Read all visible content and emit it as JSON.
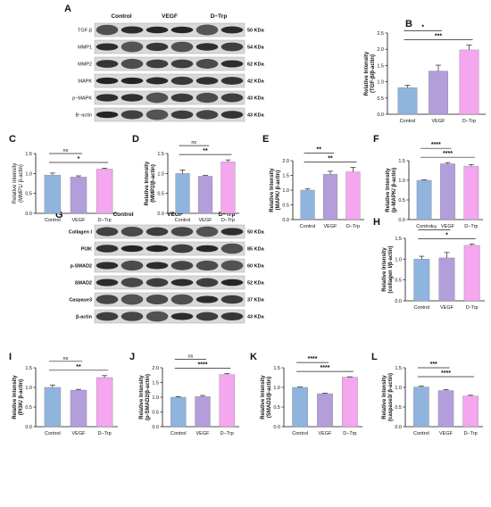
{
  "blot_a": {
    "label": "A",
    "lanes": [
      "Control",
      "VEGF",
      "D−Trp"
    ],
    "rows": [
      {
        "marker": "TGF-β",
        "size": "50 KDa"
      },
      {
        "marker": "MMP1",
        "size": "54 KDa"
      },
      {
        "marker": "MMP2",
        "size": "62 KDa"
      },
      {
        "marker": "MAPK",
        "size": "42 KDa"
      },
      {
        "marker": "p−MAPK",
        "size": "43 KDa"
      },
      {
        "marker": "B−actin",
        "size": "43 KDa"
      }
    ]
  },
  "blot_g": {
    "label": "G",
    "lanes": [
      "Control",
      "VEGF",
      "D−Trp"
    ],
    "rows": [
      {
        "marker": "Collagen I",
        "size": "50 KDa"
      },
      {
        "marker": "PI3K",
        "size": "85 KDa"
      },
      {
        "marker": "p-SMAD2",
        "size": "60 KDa"
      },
      {
        "marker": "SMAD2",
        "size": "52 KDa"
      },
      {
        "marker": "Caspase3",
        "size": "37 KDa"
      },
      {
        "marker": "β-actin",
        "size": "43 KDa"
      }
    ]
  },
  "colors": {
    "control": "#8fb4de",
    "vegf": "#b39ddb",
    "dtrp": "#f4a6ee",
    "axis": "#111111"
  },
  "chart_data": [
    {
      "panel": "B",
      "type": "bar",
      "categories": [
        "Control",
        "VEGF",
        "D−Trp"
      ],
      "values": [
        0.82,
        1.33,
        1.98
      ],
      "errors": [
        0.07,
        0.18,
        0.15
      ],
      "ylabel": [
        "Relative Intensity",
        "(TGF-β/β-actin)"
      ],
      "ylabel_bold": true,
      "ylim": [
        0,
        2.5
      ],
      "yticks": [
        "0.0",
        "0.5",
        "1.0",
        "1.5",
        "2.0",
        "2.5"
      ],
      "significance": [
        {
          "from": 0,
          "to": 1,
          "label": "*"
        },
        {
          "from": 0,
          "to": 2,
          "label": "***"
        }
      ]
    },
    {
      "panel": "C",
      "type": "bar",
      "categories": [
        "Control",
        "VEGF",
        "D−Trp"
      ],
      "values": [
        0.96,
        0.91,
        1.11
      ],
      "errors": [
        0.05,
        0.03,
        0.02
      ],
      "ylabel": [
        "Relative Intensity",
        "(MMP1/ β-actin)"
      ],
      "ylabel_bold": false,
      "ylim": [
        0,
        1.5
      ],
      "yticks": [
        "0.0",
        "0.5",
        "1.0",
        "1.5"
      ],
      "significance": [
        {
          "from": 0,
          "to": 1,
          "label": "ns"
        },
        {
          "from": 0,
          "to": 2,
          "label": "*"
        }
      ]
    },
    {
      "panel": "D",
      "type": "bar",
      "categories": [
        "Control",
        "VEGF",
        "D−Trp"
      ],
      "values": [
        1.0,
        0.93,
        1.29
      ],
      "errors": [
        0.09,
        0.02,
        0.05
      ],
      "ylabel": [
        "Relative Intensity",
        "(MMP2/β-actin)"
      ],
      "ylabel_bold": true,
      "ylim": [
        0,
        1.5
      ],
      "yticks": [
        "0.0",
        "0.5",
        "1.0",
        "1.5"
      ],
      "significance": [
        {
          "from": 0,
          "to": 1,
          "label": "ns"
        },
        {
          "from": 0,
          "to": 2,
          "label": "**"
        }
      ]
    },
    {
      "panel": "E",
      "type": "bar",
      "categories": [
        "Control",
        "VEGF",
        "D−Trp"
      ],
      "values": [
        1.0,
        1.54,
        1.62
      ],
      "errors": [
        0.04,
        0.1,
        0.15
      ],
      "ylabel": [
        "Relative Intensity",
        "(MAPK/ β-actin)"
      ],
      "ylabel_bold": true,
      "ylim": [
        0,
        2.0
      ],
      "yticks": [
        "0.0",
        "0.5",
        "1.0",
        "1.5",
        "2.0"
      ],
      "significance": [
        {
          "from": 0,
          "to": 1,
          "label": "**"
        },
        {
          "from": 0,
          "to": 2,
          "label": "**"
        }
      ]
    },
    {
      "panel": "F",
      "type": "bar",
      "categories": [
        "Control",
        "VEGF",
        "D−Trp"
      ],
      "values": [
        1.0,
        1.42,
        1.36
      ],
      "errors": [
        0.01,
        0.03,
        0.04
      ],
      "ylabel": [
        "Relative Intensity",
        "(p-MAPK/ β-actin)"
      ],
      "ylabel_bold": true,
      "ylim": [
        0,
        1.5
      ],
      "yticks": [
        "0.0",
        "0.5",
        "1.0",
        "1.5"
      ],
      "significance": [
        {
          "from": 0,
          "to": 1,
          "label": "****"
        },
        {
          "from": 0,
          "to": 2,
          "label": "****"
        }
      ]
    },
    {
      "panel": "H",
      "type": "bar",
      "categories": [
        "Control",
        "VEGF",
        "D-Trp"
      ],
      "values": [
        1.0,
        1.03,
        1.33
      ],
      "errors": [
        0.07,
        0.13,
        0.03
      ],
      "ylabel": [
        "Relative Intensity",
        "(collagen I/β-actin)"
      ],
      "ylabel_bold": true,
      "ylim": [
        0,
        1.5
      ],
      "yticks": [
        "0.0",
        "0.5",
        "1.0",
        "1.5"
      ],
      "significance": [
        {
          "from": 0,
          "to": 1,
          "label": "ns"
        },
        {
          "from": 0,
          "to": 2,
          "label": "*"
        }
      ]
    },
    {
      "panel": "I",
      "type": "bar",
      "categories": [
        "Control",
        "VEGF",
        "D−Trp"
      ],
      "values": [
        1.0,
        0.93,
        1.25
      ],
      "errors": [
        0.06,
        0.02,
        0.05
      ],
      "ylabel": [
        "Relative Intensity",
        "(PI3K/ β-actin)"
      ],
      "ylabel_bold": true,
      "ylim": [
        0,
        1.5
      ],
      "yticks": [
        "0.0",
        "0.5",
        "1.0",
        "1.5"
      ],
      "significance": [
        {
          "from": 0,
          "to": 1,
          "label": "ns"
        },
        {
          "from": 0,
          "to": 2,
          "label": "**"
        }
      ]
    },
    {
      "panel": "J",
      "type": "bar",
      "categories": [
        "Control",
        "VEGF",
        "D−Trp"
      ],
      "values": [
        1.0,
        1.02,
        1.77
      ],
      "errors": [
        0.02,
        0.04,
        0.03
      ],
      "ylabel": [
        "Relative Intensity",
        "(p-SMAD2/β-actin)"
      ],
      "ylabel_bold": true,
      "ylim": [
        0,
        2.0
      ],
      "yticks": [
        "0.0",
        "0.5",
        "1.0",
        "1.5",
        "2.0"
      ],
      "significance": [
        {
          "from": 0,
          "to": 1,
          "label": "ns"
        },
        {
          "from": 0,
          "to": 2,
          "label": "****"
        }
      ]
    },
    {
      "panel": "K",
      "type": "bar",
      "categories": [
        "Control",
        "VEGF",
        "D−Trp"
      ],
      "values": [
        1.0,
        0.84,
        1.26
      ],
      "errors": [
        0.01,
        0.01,
        0.01
      ],
      "ylabel": [
        "Relative Intensity",
        "(SMAD2/β-actin)"
      ],
      "ylabel_bold": true,
      "ylim": [
        0,
        1.5
      ],
      "yticks": [
        "0.0",
        "0.5",
        "1.0",
        "1.5"
      ],
      "significance": [
        {
          "from": 0,
          "to": 1,
          "label": "****"
        },
        {
          "from": 0,
          "to": 2,
          "label": "****"
        }
      ]
    },
    {
      "panel": "L",
      "type": "bar",
      "categories": [
        "Control",
        "VEGF",
        "D−Trp"
      ],
      "values": [
        1.01,
        0.92,
        0.78
      ],
      "errors": [
        0.02,
        0.02,
        0.02
      ],
      "ylabel": [
        "Relative Intensity",
        "(caspase3/ β-actin)"
      ],
      "ylabel_bold": true,
      "ylim": [
        0,
        1.5
      ],
      "yticks": [
        "0.0",
        "0.5",
        "1.0",
        "1.5"
      ],
      "significance": [
        {
          "from": 0,
          "to": 1,
          "label": "***"
        },
        {
          "from": 0,
          "to": 2,
          "label": "****"
        }
      ]
    }
  ]
}
